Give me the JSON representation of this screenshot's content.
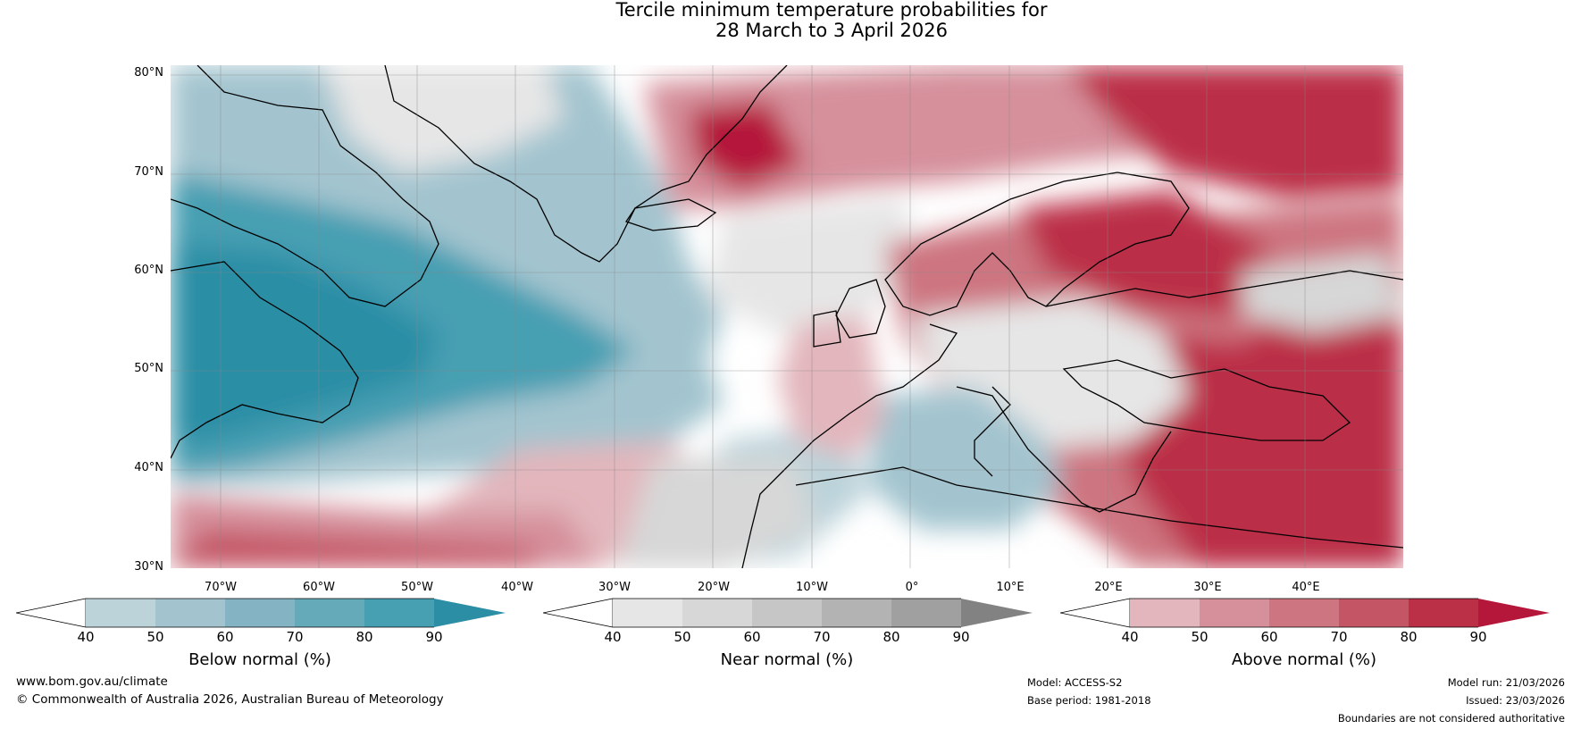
{
  "title": {
    "line1": "Tercile minimum temperature probabilities for",
    "line2": "28 March to 3 April 2026"
  },
  "map": {
    "lat_labels": [
      "80°N",
      "70°N",
      "60°N",
      "50°N",
      "40°N",
      "30°N"
    ],
    "lon_labels": [
      "70°W",
      "60°W",
      "50°W",
      "40°W",
      "30°W",
      "20°W",
      "10°W",
      "0°",
      "10°E",
      "20°E",
      "30°E",
      "40°E"
    ]
  },
  "colorbars": {
    "below": {
      "title": "Below normal (%)",
      "ticks": [
        "40",
        "50",
        "60",
        "70",
        "80",
        "90"
      ],
      "colors": [
        "#bcd3da",
        "#a3c4cf",
        "#84b3c3",
        "#64aab8",
        "#479fb2",
        "#2b8ea5"
      ]
    },
    "near": {
      "title": "Near normal (%)",
      "ticks": [
        "40",
        "50",
        "60",
        "70",
        "80",
        "90"
      ],
      "colors": [
        "#e6e6e6",
        "#d7d7d7",
        "#c6c6c6",
        "#b3b3b3",
        "#a0a0a0",
        "#828282"
      ]
    },
    "above": {
      "title": "Above normal (%)",
      "ticks": [
        "40",
        "50",
        "60",
        "70",
        "80",
        "90"
      ],
      "colors": [
        "#e2b6bc",
        "#d5909b",
        "#cd7580",
        "#c45565",
        "#bb2f47",
        "#b5173a"
      ]
    }
  },
  "footer": {
    "website": "www.bom.gov.au/climate",
    "copyright": "© Commonwealth of Australia 2026, Australian Bureau of Meteorology",
    "model": "Model: ACCESS-S2",
    "base_period": "Base period: 1981-2018",
    "model_run": "Model run: 21/03/2026",
    "issued": "Issued: 23/03/2026",
    "disclaimer": "Boundaries are not considered authoritative"
  }
}
